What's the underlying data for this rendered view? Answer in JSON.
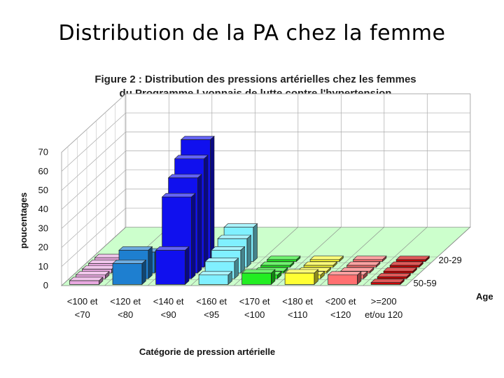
{
  "slide_title": "Distribution de la PA chez la femme",
  "chart_data": {
    "type": "bar",
    "title_lines": [
      "Figure 2 : Distribution des pressions artérielles chez les femmes",
      "du Programme Lyonnais de lutte contre l'hypertension"
    ],
    "ylabel": "poucentages",
    "xlabel": "Catégorie de pression artérielle",
    "zlabel": "Age",
    "ylim": [
      0,
      70
    ],
    "yticks": [
      0,
      10,
      20,
      30,
      40,
      50,
      60,
      70
    ],
    "categories": [
      [
        "<100 et",
        "<70"
      ],
      [
        "<120 et",
        "<80"
      ],
      [
        "<140 et",
        "<90"
      ],
      [
        "<160 et",
        "<95"
      ],
      [
        "<170 et",
        "<100"
      ],
      [
        "<180 et",
        "<110"
      ],
      [
        "<200 et",
        "<120"
      ],
      [
        ">=200",
        "et/ou 120"
      ]
    ],
    "category_colors": [
      "#e8a8e0",
      "#1e7fd0",
      "#1010ee",
      "#80f0ff",
      "#22ee22",
      "#ffff33",
      "#ff7070",
      "#cc0000"
    ],
    "series": [
      {
        "name": "20-29",
        "values": [
          2,
          3,
          64,
          18,
          1,
          1,
          1,
          1
        ]
      },
      {
        "name": "",
        "values": [
          2,
          7,
          57,
          15,
          1,
          1,
          1,
          1
        ]
      },
      {
        "name": "",
        "values": [
          2,
          11,
          50,
          12,
          1,
          1,
          1,
          1
        ]
      },
      {
        "name": "",
        "values": [
          2,
          15,
          43,
          9,
          2,
          2,
          2,
          1
        ]
      },
      {
        "name": "50-59",
        "values": [
          2,
          11,
          18,
          5,
          6,
          6,
          5,
          1
        ]
      }
    ],
    "grid": true,
    "floor_color": "#ccffcc"
  }
}
